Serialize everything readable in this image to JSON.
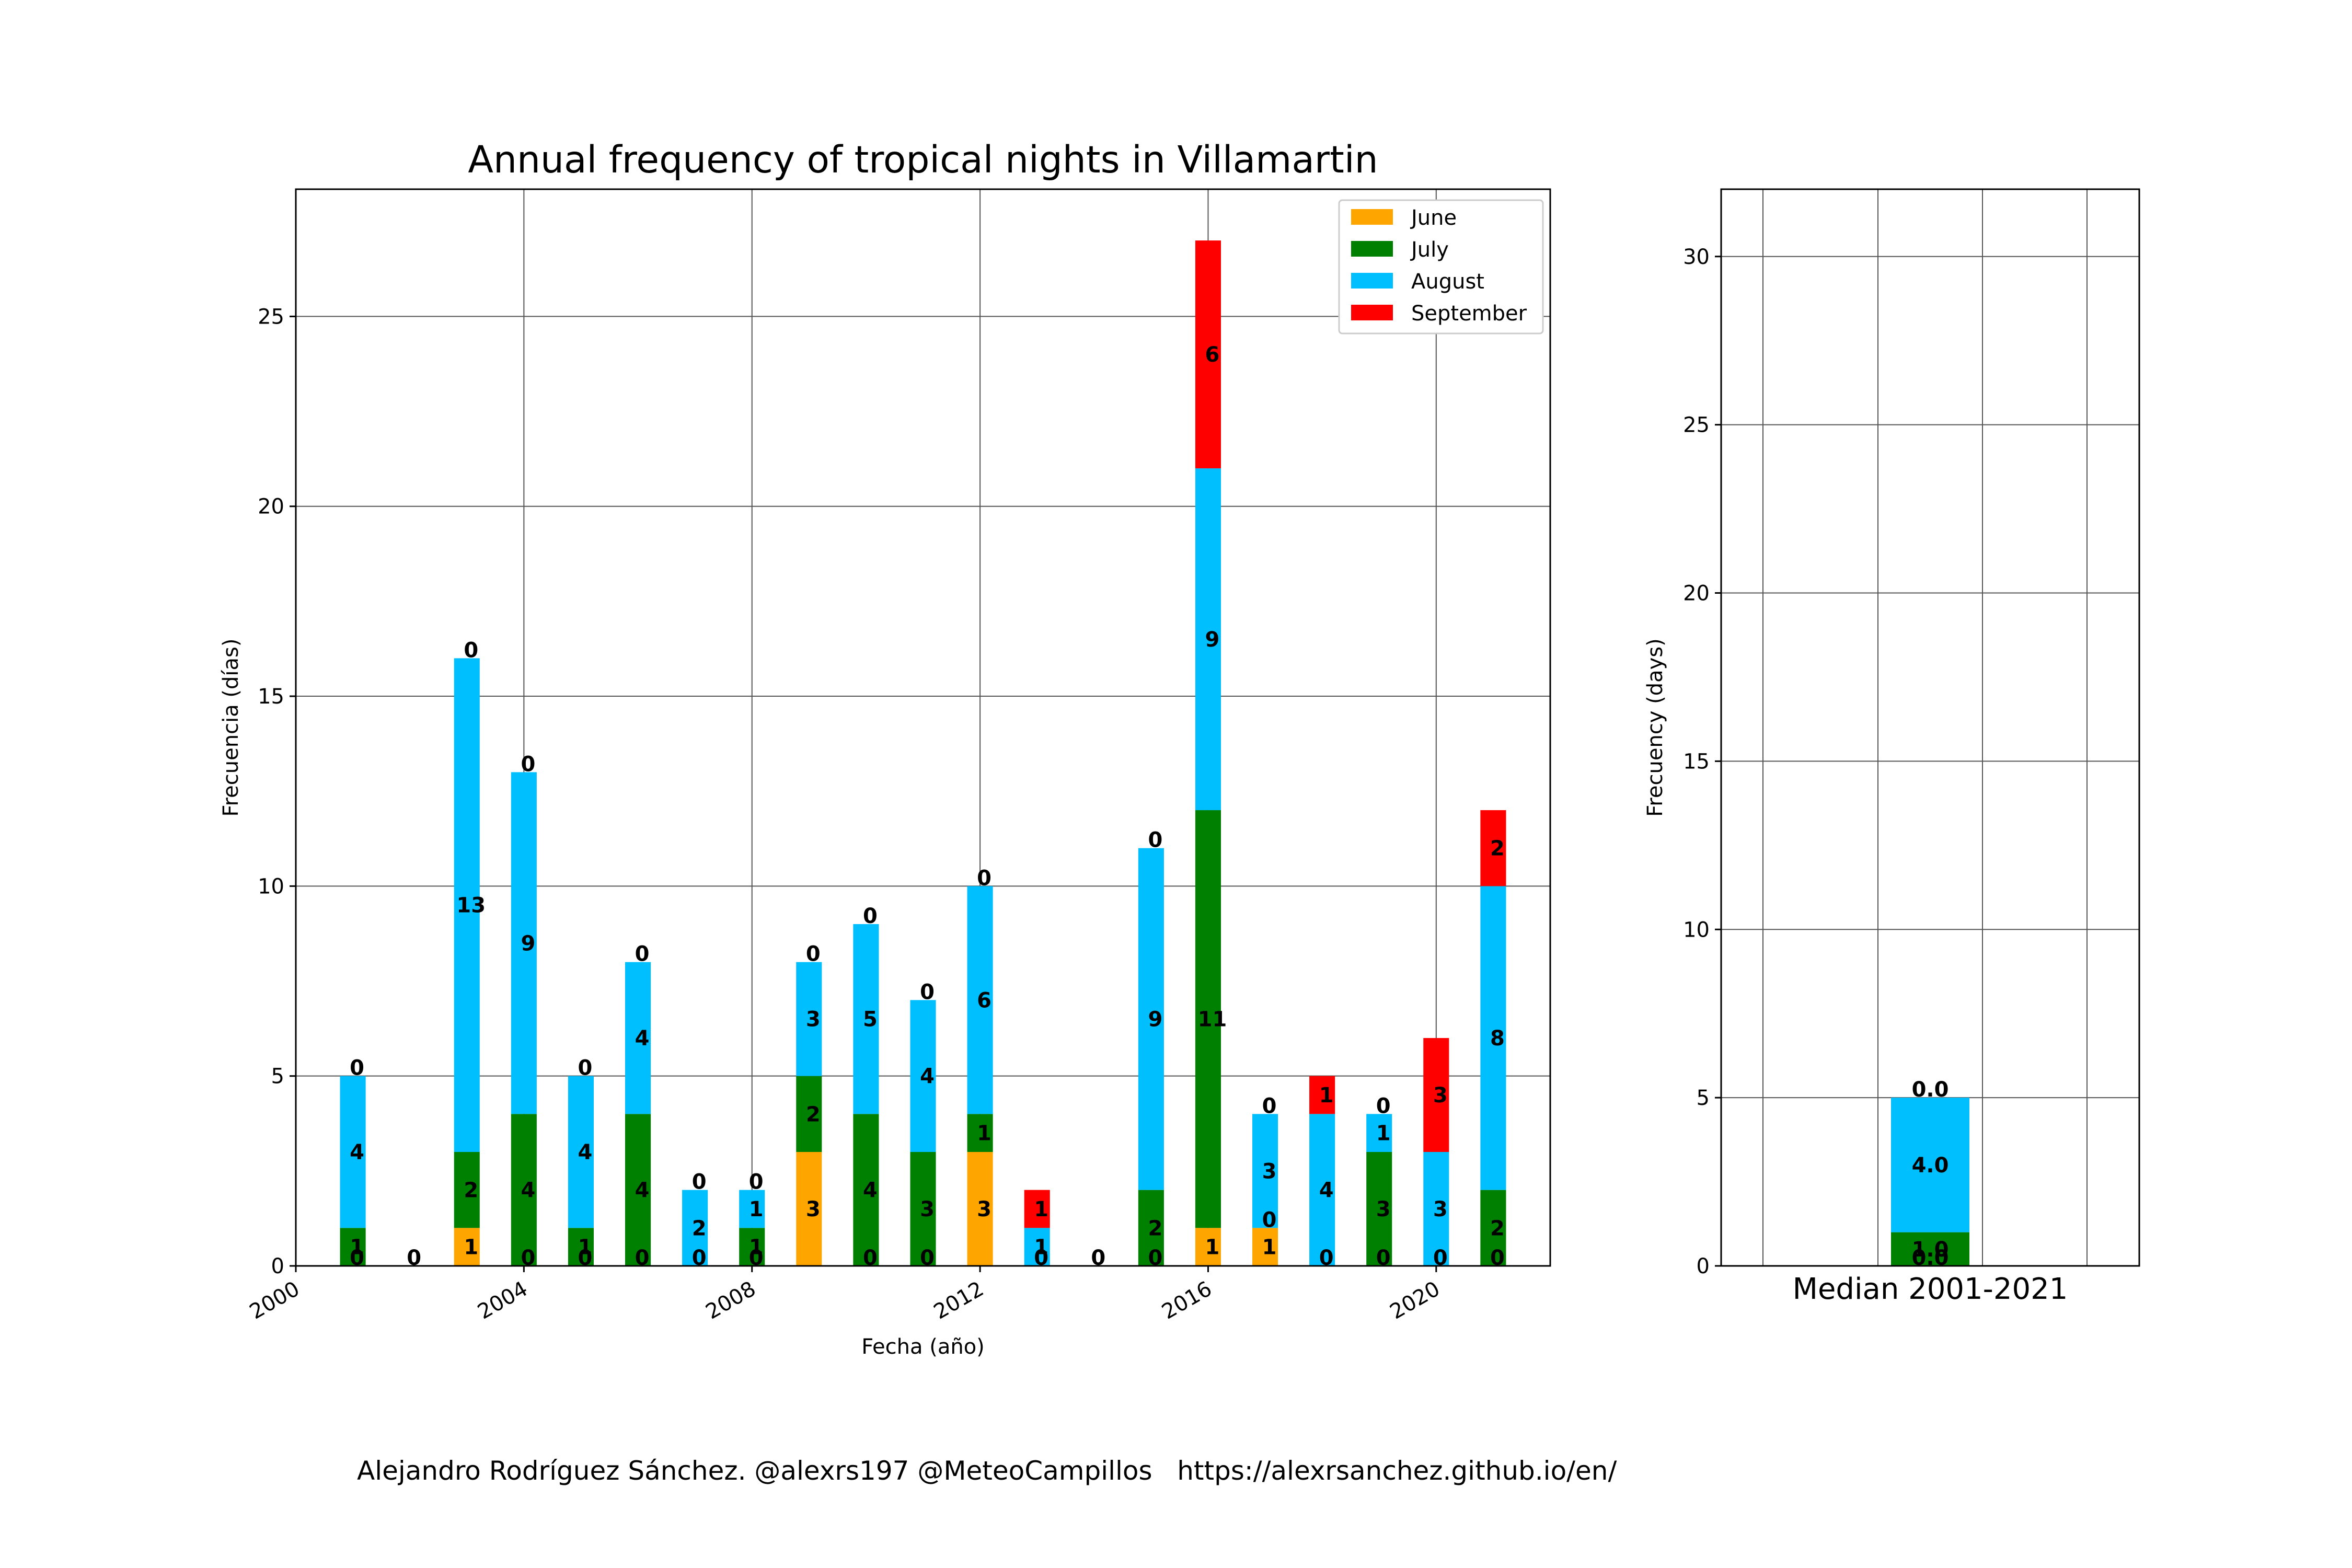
{
  "credit": "Alejandro Rodríguez Sánchez. @alexrs197 @MeteoCampillos   https://alexrsanchez.github.io/en/",
  "chart_data": [
    {
      "type": "bar",
      "stacked": true,
      "title": "Annual frequency of tropical nights in Villamartin",
      "xlabel": "Fecha (año)",
      "ylabel": "Frecuencia (días)",
      "xlim": [
        2000,
        2022
      ],
      "ylim": [
        0,
        28.35
      ],
      "xticks": [
        2000,
        2004,
        2008,
        2012,
        2016,
        2020
      ],
      "yticks": [
        0,
        5,
        10,
        15,
        20,
        25
      ],
      "grid": true,
      "legend": "top-right",
      "x": [
        2001,
        2002,
        2003,
        2004,
        2005,
        2006,
        2007,
        2008,
        2009,
        2010,
        2011,
        2012,
        2013,
        2014,
        2015,
        2016,
        2017,
        2018,
        2019,
        2020,
        2021
      ],
      "series": [
        {
          "name": "June",
          "color": "#ffa500",
          "values": [
            0,
            0,
            1,
            0,
            0,
            0,
            0,
            0,
            3,
            0,
            0,
            3,
            0,
            0,
            0,
            1,
            1,
            0,
            0,
            0,
            0
          ]
        },
        {
          "name": "July",
          "color": "#008000",
          "values": [
            1,
            0,
            2,
            4,
            1,
            4,
            0,
            1,
            2,
            4,
            3,
            1,
            0,
            0,
            2,
            11,
            0,
            0,
            3,
            0,
            2
          ]
        },
        {
          "name": "August",
          "color": "#00bfff",
          "values": [
            4,
            0,
            13,
            9,
            4,
            4,
            2,
            1,
            3,
            5,
            4,
            6,
            1,
            0,
            9,
            9,
            3,
            4,
            1,
            3,
            8
          ]
        },
        {
          "name": "September",
          "color": "#ff0000",
          "values": [
            0,
            0,
            0,
            0,
            0,
            0,
            0,
            0,
            0,
            0,
            0,
            0,
            1,
            0,
            0,
            6,
            0,
            1,
            0,
            3,
            2
          ]
        }
      ],
      "bar_labels": {
        "June": [
          "0",
          "0",
          "1",
          "0",
          "0",
          "0",
          "0",
          "0",
          "3",
          "0",
          "0",
          "3",
          "0",
          "0",
          "0",
          "1",
          "1",
          "0",
          "0",
          "0",
          "0"
        ],
        "July": [
          "1",
          "",
          "2",
          "4",
          "1",
          "4",
          "",
          "1",
          "2",
          "4",
          "3",
          "1",
          "",
          "",
          "2",
          "11",
          "0",
          "",
          "3",
          "",
          "2"
        ],
        "August": [
          "4",
          "",
          "13",
          "9",
          "4",
          "4",
          "2",
          "1",
          "3",
          "5",
          "4",
          "6",
          "1",
          "",
          "9",
          "9",
          "3",
          "4",
          "1",
          "3",
          "8"
        ],
        "September": [
          "0",
          "",
          "0",
          "0",
          "0",
          "0",
          "0",
          "0",
          "0",
          "0",
          "0",
          "0",
          "1",
          "",
          "0",
          "6",
          "0",
          "1",
          "0",
          "3",
          "2"
        ]
      }
    },
    {
      "type": "bar",
      "stacked": true,
      "xlabel": "Median 2001-2021",
      "ylabel": "Frecuency (days)",
      "ylim": [
        0,
        32
      ],
      "yticks": [
        0,
        5,
        10,
        15,
        20,
        25,
        30
      ],
      "grid": true,
      "series": [
        {
          "name": "June",
          "color": "#ffa500",
          "values": [
            0.0
          ]
        },
        {
          "name": "July",
          "color": "#008000",
          "values": [
            1.0
          ]
        },
        {
          "name": "August",
          "color": "#00bfff",
          "values": [
            4.0
          ]
        },
        {
          "name": "September",
          "color": "#ff0000",
          "values": [
            0.0
          ]
        }
      ],
      "bar_labels": [
        "0.0",
        "1.0",
        "4.0",
        "0.0"
      ]
    }
  ]
}
